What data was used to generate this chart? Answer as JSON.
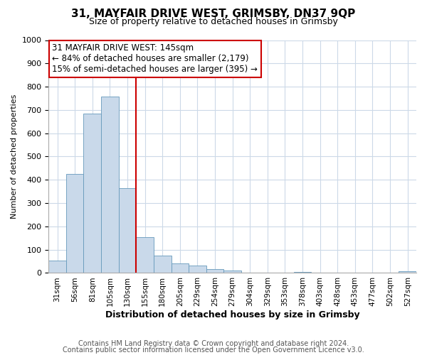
{
  "title": "31, MAYFAIR DRIVE WEST, GRIMSBY, DN37 9QP",
  "subtitle": "Size of property relative to detached houses in Grimsby",
  "xlabel": "Distribution of detached houses by size in Grimsby",
  "ylabel": "Number of detached properties",
  "bar_color": "#c9d9ea",
  "bar_edge_color": "#6699bb",
  "bin_labels": [
    "31sqm",
    "56sqm",
    "81sqm",
    "105sqm",
    "130sqm",
    "155sqm",
    "180sqm",
    "205sqm",
    "229sqm",
    "254sqm",
    "279sqm",
    "304sqm",
    "329sqm",
    "353sqm",
    "378sqm",
    "403sqm",
    "428sqm",
    "453sqm",
    "477sqm",
    "502sqm",
    "527sqm"
  ],
  "bar_heights": [
    52,
    425,
    685,
    758,
    363,
    153,
    75,
    42,
    32,
    17,
    12,
    0,
    0,
    0,
    5,
    0,
    0,
    0,
    0,
    0,
    8
  ],
  "vline_color": "#cc0000",
  "ylim": [
    0,
    1000
  ],
  "yticks": [
    0,
    100,
    200,
    300,
    400,
    500,
    600,
    700,
    800,
    900,
    1000
  ],
  "annotation_title": "31 MAYFAIR DRIVE WEST: 145sqm",
  "annotation_line1": "← 84% of detached houses are smaller (2,179)",
  "annotation_line2": "15% of semi-detached houses are larger (395) →",
  "footer1": "Contains HM Land Registry data © Crown copyright and database right 2024.",
  "footer2": "Contains public sector information licensed under the Open Government Licence v3.0.",
  "background_color": "#ffffff",
  "grid_color": "#ccd9e8",
  "annotation_box_color": "#ffffff",
  "annotation_box_edge": "#cc0000",
  "title_fontsize": 11,
  "subtitle_fontsize": 9,
  "ylabel_fontsize": 8,
  "xlabel_fontsize": 9,
  "tick_fontsize": 8,
  "xtick_fontsize": 7.5,
  "annotation_fontsize": 8.5,
  "footer_fontsize": 7
}
